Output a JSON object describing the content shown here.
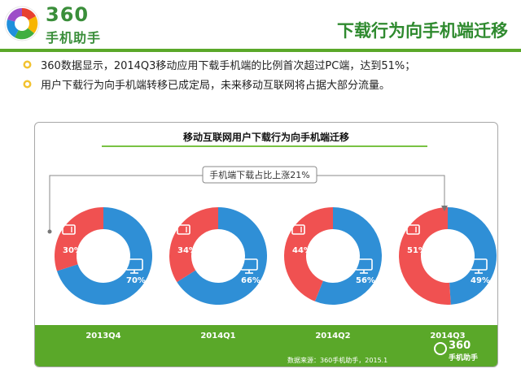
{
  "header": {
    "logo_text": "360",
    "logo_sub": "手机助手",
    "title": "下载行为向手机端迁移"
  },
  "bullets": [
    {
      "text": "360数据显示，2014Q3移动应用下载手机端的比例首次超过PC端，达到51%；"
    },
    {
      "text": "用户下载行为向手机端转移已成定局，未来移动互联网将占据大部分流量。"
    }
  ],
  "chart_data": {
    "type": "pie",
    "variant": "donut",
    "title": "移动互联网用户下载行为向手机端迁移",
    "annotation": "手机端下载占比上涨21%",
    "categories": [
      "2013Q4",
      "2014Q1",
      "2014Q2",
      "2014Q3"
    ],
    "series": [
      {
        "name": "手机端",
        "values": [
          30,
          34,
          44,
          51
        ],
        "labels": [
          "30%",
          "34%",
          "44%",
          "51%"
        ],
        "color": "#f05151"
      },
      {
        "name": "PC端",
        "values": [
          70,
          66,
          56,
          49
        ],
        "labels": [
          "70%",
          "66%",
          "56%",
          "49%"
        ],
        "color": "#2f8fd6"
      }
    ],
    "icons": [
      "phone-icon",
      "monitor-icon"
    ]
  },
  "footer": {
    "source": "数据来源：360手机助手，2015.1",
    "logo_text": "360",
    "logo_sub": "手机助手",
    "band_color": "#5aa829"
  },
  "colors": {
    "accent_green": "#5aa829",
    "title_green": "#2f8a2f",
    "mobile_red": "#f05151",
    "pc_blue": "#2f8fd6"
  }
}
